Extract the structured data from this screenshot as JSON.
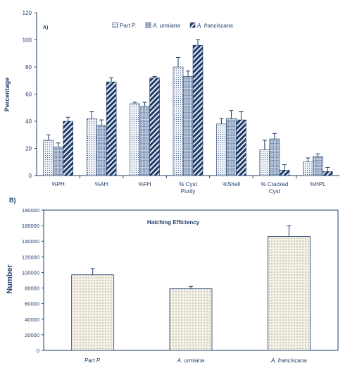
{
  "colors": {
    "ink": "#1f3d6b",
    "fill_light": "#eef2f8",
    "fill_mid": "#c8d4e6",
    "fill_dark": "#1f3d6b"
  },
  "chart_data": [
    {
      "panel_label": "A)",
      "type": "bar",
      "title": "",
      "xlabel": "",
      "ylabel": "Percentage",
      "ylim": [
        0,
        120
      ],
      "yticks": [
        0,
        20,
        40,
        60,
        80,
        100,
        120
      ],
      "grid": false,
      "legend_position": "top-right",
      "categories": [
        "%PH",
        "%AH",
        "%FH",
        "% Cyst Purity",
        "%Shell",
        "% Cracked Cyst",
        "%HPL"
      ],
      "series": [
        {
          "name": "Part P.",
          "pattern": "dots-light",
          "values": [
            26,
            42,
            53,
            80,
            38,
            19,
            10
          ],
          "errors": [
            4,
            5,
            1,
            7,
            4,
            7,
            3
          ]
        },
        {
          "name": "A. urmiana",
          "pattern": "dots-mid",
          "values": [
            21,
            37,
            51,
            73,
            42,
            27,
            14
          ],
          "errors": [
            3,
            4,
            3,
            4,
            6,
            4,
            2
          ]
        },
        {
          "name": "A. franciscana",
          "pattern": "hatch-dark",
          "values": [
            40,
            69,
            72,
            96,
            41,
            4,
            3
          ],
          "errors": [
            3,
            3,
            1,
            4,
            6,
            4,
            3
          ]
        }
      ]
    },
    {
      "panel_label": "B)",
      "type": "bar",
      "title": "Hatching Efficiency",
      "xlabel": "",
      "ylabel": "Number",
      "ylim": [
        0,
        180000
      ],
      "yticks": [
        0,
        20000,
        40000,
        60000,
        80000,
        100000,
        120000,
        140000,
        160000,
        180000
      ],
      "grid": false,
      "categories": [
        "Part P.",
        "A. urmiana",
        "A. franciscana"
      ],
      "values": [
        97000,
        79000,
        146000
      ],
      "errors": [
        8000,
        3000,
        14000
      ]
    }
  ]
}
